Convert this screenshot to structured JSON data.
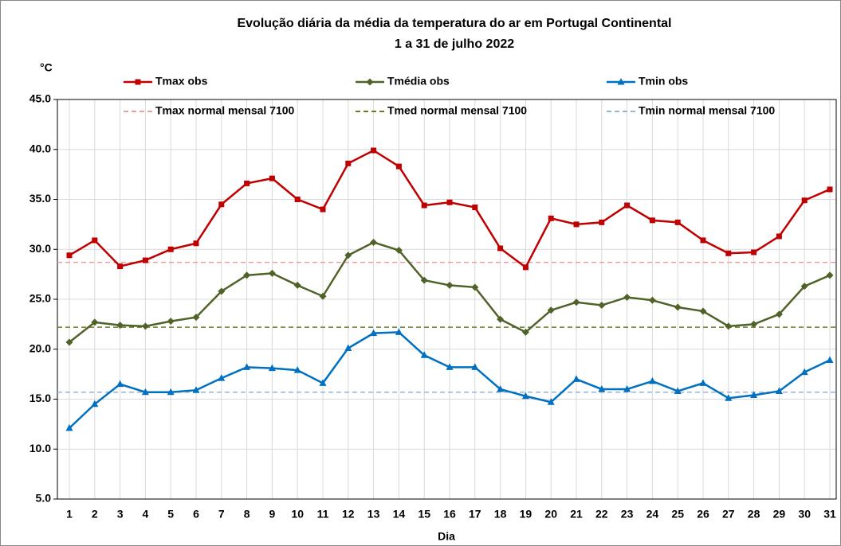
{
  "chart_data": {
    "type": "line",
    "title": [
      "Evolução diária da média da temperatura do ar em Portugal Continental",
      "1 a 31 de julho 2022"
    ],
    "y_unit": "°C",
    "x_label": "Dia",
    "categories": [
      "1",
      "2",
      "3",
      "4",
      "5",
      "6",
      "7",
      "8",
      "9",
      "10",
      "11",
      "12",
      "13",
      "14",
      "15",
      "16",
      "17",
      "18",
      "19",
      "20",
      "21",
      "22",
      "23",
      "24",
      "25",
      "26",
      "27",
      "28",
      "29",
      "30",
      "31"
    ],
    "series": [
      {
        "name": "Tmax obs",
        "color": "#c00000",
        "marker": "square",
        "values": [
          29.4,
          30.9,
          28.3,
          28.9,
          30.0,
          30.6,
          34.5,
          36.6,
          37.1,
          35.0,
          34.0,
          38.6,
          39.9,
          38.3,
          34.4,
          34.7,
          34.2,
          30.1,
          28.2,
          33.1,
          32.5,
          32.7,
          34.4,
          32.9,
          32.7,
          30.9,
          29.6,
          29.7,
          31.3,
          34.9,
          36.0
        ]
      },
      {
        "name": "Tmédia obs",
        "color": "#4f6228",
        "marker": "diamond",
        "values": [
          20.7,
          22.7,
          22.4,
          22.3,
          22.8,
          23.2,
          25.8,
          27.4,
          27.6,
          26.4,
          25.3,
          29.4,
          30.7,
          29.9,
          26.9,
          26.4,
          26.2,
          23.0,
          21.7,
          23.9,
          24.7,
          24.4,
          25.2,
          24.9,
          24.2,
          23.8,
          22.3,
          22.5,
          23.5,
          26.3,
          27.4
        ]
      },
      {
        "name": "Tmin obs",
        "color": "#0070c0",
        "marker": "triangle",
        "values": [
          12.1,
          14.5,
          16.5,
          15.7,
          15.7,
          15.9,
          17.1,
          18.2,
          18.1,
          17.9,
          16.6,
          20.1,
          21.6,
          21.7,
          19.4,
          18.2,
          18.2,
          16.0,
          15.3,
          14.7,
          17.0,
          16.0,
          16.0,
          16.8,
          15.8,
          16.6,
          15.1,
          15.4,
          15.8,
          17.7,
          18.9
        ]
      }
    ],
    "reference_lines": [
      {
        "name": "Tmax normal mensal 7100",
        "color": "#e6a0a0",
        "value": 28.7
      },
      {
        "name": "Tmed normal mensal 7100",
        "color": "#6b7a2a",
        "value": 22.2
      },
      {
        "name": "Tmin normal mensal 7100",
        "color": "#95b3d7",
        "value": 15.7
      }
    ],
    "ylim": [
      5,
      45
    ],
    "yticks": [
      {
        "value": 5,
        "label": "5.0"
      },
      {
        "value": 10,
        "label": "10.0"
      },
      {
        "value": 15,
        "label": "15.0"
      },
      {
        "value": 20,
        "label": "20.0"
      },
      {
        "value": 25,
        "label": "25.0"
      },
      {
        "value": 30,
        "label": "30.0"
      },
      {
        "value": 35,
        "label": "35.0"
      },
      {
        "value": 40,
        "label": "40.0"
      },
      {
        "value": 45,
        "label": "45.0"
      }
    ],
    "grid": true
  }
}
